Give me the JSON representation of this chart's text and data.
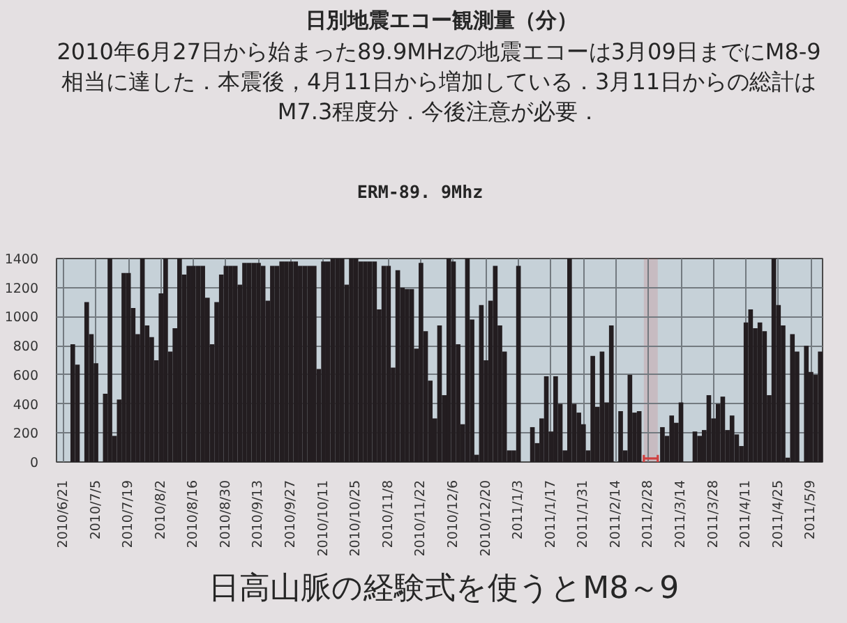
{
  "chart_data": {
    "type": "bar",
    "title": "日別地震エコー観測量（分）",
    "subtitle": "2010年6月27日から始まった89.9MHzの地震エコーは3月09日までにM8-9\n相当に達した．本震後，4月11日から増加している．3月11日からの総計は\nM7.3程度分．今後注意が必要．",
    "annotations": [
      "ERM-89. 9Mhz",
      "日高山脈の経験式を使うとM8～9"
    ],
    "color": "#231d20",
    "x": [
      "2010-06-25",
      "2010-06-27",
      "2010-06-29",
      "2010-07-01",
      "2010-07-03",
      "2010-07-05",
      "2010-07-07",
      "2010-07-09",
      "2010-07-11",
      "2010-07-13",
      "2010-07-15",
      "2010-07-17",
      "2010-07-19",
      "2010-07-21",
      "2010-07-23",
      "2010-07-25",
      "2010-07-27",
      "2010-07-29",
      "2010-07-31",
      "2010-08-02",
      "2010-08-04",
      "2010-08-06",
      "2010-08-08",
      "2010-08-10",
      "2010-08-12",
      "2010-08-14",
      "2010-08-16",
      "2010-08-18",
      "2010-08-20",
      "2010-08-22",
      "2010-08-24",
      "2010-08-26",
      "2010-08-28",
      "2010-08-30",
      "2010-09-01",
      "2010-09-03",
      "2010-09-05",
      "2010-09-07",
      "2010-09-09",
      "2010-09-11",
      "2010-09-13",
      "2010-09-15",
      "2010-09-17",
      "2010-09-19",
      "2010-09-21",
      "2010-09-23",
      "2010-09-25",
      "2010-09-27",
      "2010-09-29",
      "2010-10-01",
      "2010-10-03",
      "2010-10-05",
      "2010-10-07",
      "2010-10-09",
      "2010-10-11",
      "2010-10-13",
      "2010-10-15",
      "2010-10-17",
      "2010-10-19",
      "2010-10-21",
      "2010-10-23",
      "2010-10-25",
      "2010-10-27",
      "2010-10-29",
      "2010-10-31",
      "2010-11-02",
      "2010-11-04",
      "2010-11-06",
      "2010-11-08",
      "2010-11-10",
      "2010-11-12",
      "2010-11-14",
      "2010-11-16",
      "2010-11-18",
      "2010-11-20",
      "2010-11-22",
      "2010-11-24",
      "2010-11-26",
      "2010-11-28",
      "2010-11-30",
      "2010-12-02",
      "2010-12-04",
      "2010-12-06",
      "2010-12-08",
      "2010-12-10",
      "2010-12-12",
      "2010-12-14",
      "2010-12-16",
      "2010-12-18",
      "2010-12-20",
      "2010-12-22",
      "2010-12-24",
      "2010-12-26",
      "2010-12-28",
      "2010-12-30",
      "2011-01-01",
      "2011-01-03",
      "2011-01-05",
      "2011-01-07",
      "2011-01-09",
      "2011-01-11",
      "2011-01-13",
      "2011-01-15",
      "2011-01-17",
      "2011-01-19",
      "2011-01-21",
      "2011-01-23",
      "2011-01-25",
      "2011-01-27",
      "2011-01-29",
      "2011-01-31",
      "2011-02-02",
      "2011-02-04",
      "2011-02-06",
      "2011-02-08",
      "2011-02-10",
      "2011-02-12",
      "2011-02-14",
      "2011-02-16",
      "2011-02-18",
      "2011-02-20",
      "2011-02-22",
      "2011-02-24",
      "2011-02-26",
      "2011-02-28",
      "2011-03-02",
      "2011-03-04",
      "2011-03-06",
      "2011-03-08",
      "2011-03-10",
      "2011-03-12",
      "2011-03-14",
      "2011-03-16",
      "2011-03-18",
      "2011-03-20",
      "2011-03-22",
      "2011-03-24",
      "2011-03-26",
      "2011-03-28",
      "2011-03-30",
      "2011-04-01",
      "2011-04-03",
      "2011-04-05",
      "2011-04-07",
      "2011-04-09",
      "2011-04-11",
      "2011-04-13",
      "2011-04-15",
      "2011-04-17",
      "2011-04-19",
      "2011-04-21",
      "2011-04-23",
      "2011-04-25",
      "2011-04-27",
      "2011-04-29",
      "2011-05-01",
      "2011-05-03",
      "2011-05-05",
      "2011-05-07",
      "2011-05-09",
      "2011-05-11",
      "2011-05-13"
    ],
    "values": [
      810,
      670,
      0,
      1100,
      880,
      680,
      0,
      470,
      1400,
      180,
      430,
      1300,
      1300,
      1060,
      880,
      1400,
      940,
      860,
      700,
      1160,
      1400,
      760,
      920,
      1400,
      1290,
      1350,
      1350,
      1350,
      1350,
      1130,
      810,
      1100,
      1290,
      1350,
      1350,
      1350,
      1220,
      1370,
      1370,
      1370,
      1370,
      1350,
      1110,
      1350,
      1350,
      1380,
      1380,
      1380,
      1380,
      1350,
      1350,
      1350,
      1350,
      640,
      1380,
      1380,
      1400,
      1400,
      1400,
      1220,
      1400,
      1400,
      1380,
      1380,
      1380,
      1380,
      1050,
      1350,
      1350,
      650,
      1320,
      1200,
      1190,
      1190,
      780,
      1370,
      900,
      560,
      300,
      940,
      460,
      1400,
      1380,
      810,
      260,
      1400,
      980,
      50,
      1080,
      700,
      1110,
      1350,
      940,
      760,
      80,
      80,
      1350,
      0,
      0,
      240,
      130,
      300,
      590,
      210,
      590,
      400,
      80,
      1400,
      400,
      340,
      260,
      80,
      730,
      380,
      760,
      410,
      940,
      0,
      350,
      80,
      600,
      340,
      350,
      0,
      0,
      0,
      0,
      240,
      180,
      320,
      270,
      410,
      0,
      0,
      210,
      180,
      220,
      460,
      300,
      400,
      450,
      220,
      320,
      190,
      110,
      960,
      1050,
      920,
      960,
      900,
      460,
      1400,
      1080,
      940,
      30,
      880,
      760,
      0,
      800,
      620,
      600,
      760
    ],
    "xlim": [
      "2010-06-18",
      "2011-05-14"
    ],
    "ylim": [
      0,
      1400
    ],
    "xticks": [
      {
        "value": "2010-06-21",
        "label": "2010/6/21"
      },
      {
        "value": "2010-07-05",
        "label": "2010/7/5"
      },
      {
        "value": "2010-07-19",
        "label": "2010/7/19"
      },
      {
        "value": "2010-08-02",
        "label": "2010/8/2"
      },
      {
        "value": "2010-08-16",
        "label": "2010/8/16"
      },
      {
        "value": "2010-08-30",
        "label": "2010/8/30"
      },
      {
        "value": "2010-09-13",
        "label": "2010/9/13"
      },
      {
        "value": "2010-09-27",
        "label": "2010/9/27"
      },
      {
        "value": "2010-10-11",
        "label": "2010/10/11"
      },
      {
        "value": "2010-10-25",
        "label": "2010/10/25"
      },
      {
        "value": "2010-11-08",
        "label": "2010/11/8"
      },
      {
        "value": "2010-11-22",
        "label": "2010/11/22"
      },
      {
        "value": "2010-12-06",
        "label": "2010/12/6"
      },
      {
        "value": "2010-12-20",
        "label": "2010/12/20"
      },
      {
        "value": "2011-01-03",
        "label": "2011/1/3"
      },
      {
        "value": "2011-01-17",
        "label": "2011/1/17"
      },
      {
        "value": "2011-01-31",
        "label": "2011/1/31"
      },
      {
        "value": "2011-02-14",
        "label": "2011/2/14"
      },
      {
        "value": "2011-02-28",
        "label": "2011/2/28"
      },
      {
        "value": "2011-03-14",
        "label": "2011/3/14"
      },
      {
        "value": "2011-03-28",
        "label": "2011/3/28"
      },
      {
        "value": "2011-04-11",
        "label": "2011/4/11"
      },
      {
        "value": "2011-04-25",
        "label": "2011/4/25"
      },
      {
        "value": "2011-05-09",
        "label": "2011/5/9"
      }
    ],
    "yticks": [
      0,
      200,
      400,
      600,
      800,
      1000,
      1200,
      1400
    ],
    "grid": true,
    "bands": [
      {
        "axis": "x",
        "from": "2011-02-26",
        "to": "2011-03-04",
        "color": "#d04040"
      }
    ]
  }
}
